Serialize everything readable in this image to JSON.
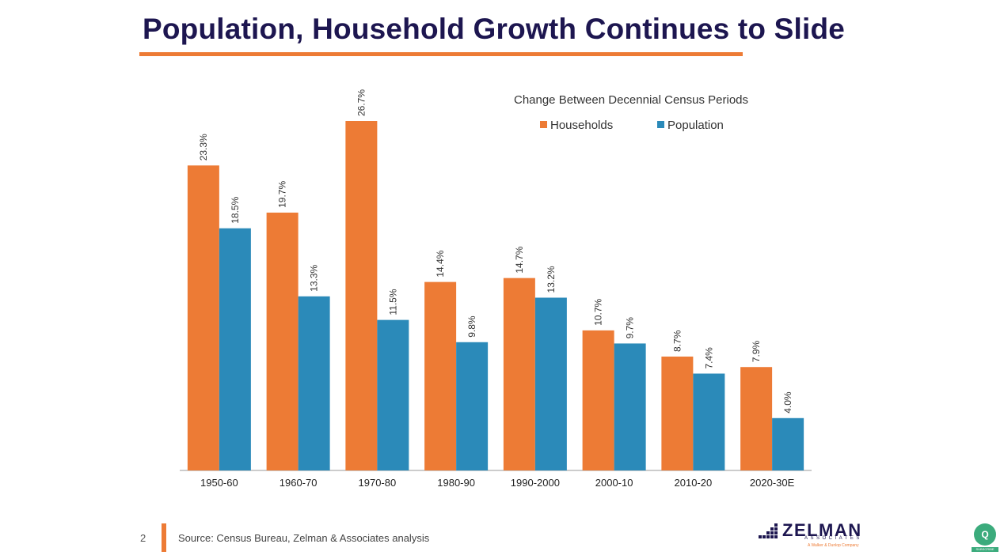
{
  "slide": {
    "title": "Population, Household Growth Continues to Slide",
    "page_number": "2",
    "source": "Source: Census Bureau, Zelman & Associates analysis"
  },
  "logo": {
    "name": "ZELMAN",
    "sub": "ASSOCIATES",
    "tagline": "A Walker & Dunlop Company"
  },
  "subscribe": {
    "label": "SUBSCRIBE",
    "icon": "subscribe-icon"
  },
  "colors": {
    "title": "#1d1650",
    "accent": "#ed7b35",
    "households": "#ed7b35",
    "population": "#2b8ab9"
  },
  "chart_data": {
    "type": "bar",
    "title": "Change Between Decennial Census Periods",
    "categories": [
      "1950-60",
      "1960-70",
      "1970-80",
      "1980-90",
      "1990-2000",
      "2000-10",
      "2010-20",
      "2020-30E"
    ],
    "series": [
      {
        "name": "Households",
        "values": [
          23.3,
          19.7,
          26.7,
          14.4,
          14.7,
          10.7,
          8.7,
          7.9
        ],
        "labels": [
          "23.3%",
          "19.7%",
          "26.7%",
          "14.4%",
          "14.7%",
          "10.7%",
          "8.7%",
          "7.9%"
        ]
      },
      {
        "name": "Population",
        "values": [
          18.5,
          13.3,
          11.5,
          9.8,
          13.2,
          9.7,
          7.4,
          4.0
        ],
        "labels": [
          "18.5%",
          "13.3%",
          "11.5%",
          "9.8%",
          "13.2%",
          "9.7%",
          "7.4%",
          "4.0%"
        ]
      }
    ],
    "xlabel": "",
    "ylabel": "",
    "ylim": [
      0,
      27
    ],
    "grid": false,
    "legend": "top-right"
  }
}
